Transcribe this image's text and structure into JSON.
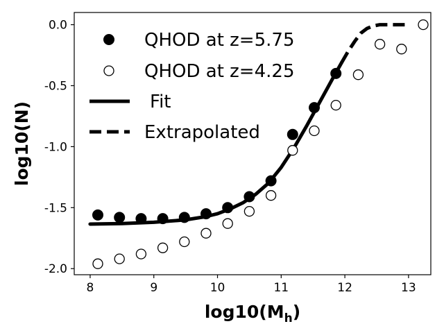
{
  "chart_data": {
    "type": "scatter",
    "title": "",
    "xlabel": "log10(M",
    "xlabel_sub": "h",
    "xlabel_close": ")",
    "ylabel": "log10(N)",
    "xlim": [
      7.75,
      13.35
    ],
    "ylim": [
      -2.05,
      0.1
    ],
    "xticks": [
      8,
      9,
      10,
      11,
      12,
      13
    ],
    "yticks": [
      -2.0,
      -1.5,
      -1.0,
      -0.5,
      0.0
    ],
    "xtick_labels": [
      "8",
      "9",
      "10",
      "11",
      "12",
      "13"
    ],
    "ytick_labels": [
      "-2.0",
      "-1.5",
      "-1.0",
      "-0.5",
      "0.0"
    ],
    "legend_position": "upper-left",
    "series": [
      {
        "name": "QHOD at z=5.75",
        "kind": "points-filled",
        "x": [
          8.12,
          8.46,
          8.8,
          9.14,
          9.48,
          9.82,
          10.16,
          10.5,
          10.84,
          11.18,
          11.52,
          11.86
        ],
        "y": [
          -1.56,
          -1.58,
          -1.59,
          -1.59,
          -1.58,
          -1.55,
          -1.5,
          -1.41,
          -1.28,
          -0.9,
          -0.68,
          -0.4
        ]
      },
      {
        "name": "QHOD at z=4.25",
        "kind": "points-open",
        "x": [
          8.12,
          8.46,
          8.8,
          9.14,
          9.48,
          9.82,
          10.16,
          10.5,
          10.84,
          11.18,
          11.52,
          11.86,
          12.21,
          12.55,
          12.89,
          13.23
        ],
        "y": [
          -1.96,
          -1.92,
          -1.88,
          -1.83,
          -1.78,
          -1.71,
          -1.63,
          -1.53,
          -1.4,
          -1.03,
          -0.87,
          -0.66,
          -0.41,
          -0.16,
          -0.2,
          0.0
        ]
      },
      {
        "name": "Fit",
        "kind": "line-solid",
        "x": [
          8.0,
          8.5,
          9.0,
          9.5,
          9.8,
          10.0,
          10.2,
          10.4,
          10.6,
          10.8,
          11.0,
          11.2,
          11.4,
          11.6,
          11.8,
          11.95
        ],
        "y": [
          -1.635,
          -1.63,
          -1.62,
          -1.6,
          -1.575,
          -1.55,
          -1.51,
          -1.46,
          -1.39,
          -1.3,
          -1.17,
          -1.01,
          -0.83,
          -0.64,
          -0.45,
          -0.31
        ]
      },
      {
        "name": "Extrapolated",
        "kind": "line-dashed",
        "x": [
          11.95,
          12.05,
          12.15,
          12.25,
          12.35,
          12.45,
          12.55,
          12.7,
          13.0
        ],
        "y": [
          -0.31,
          -0.22,
          -0.14,
          -0.07,
          -0.03,
          -0.01,
          0.0,
          0.0,
          0.0
        ]
      }
    ]
  }
}
